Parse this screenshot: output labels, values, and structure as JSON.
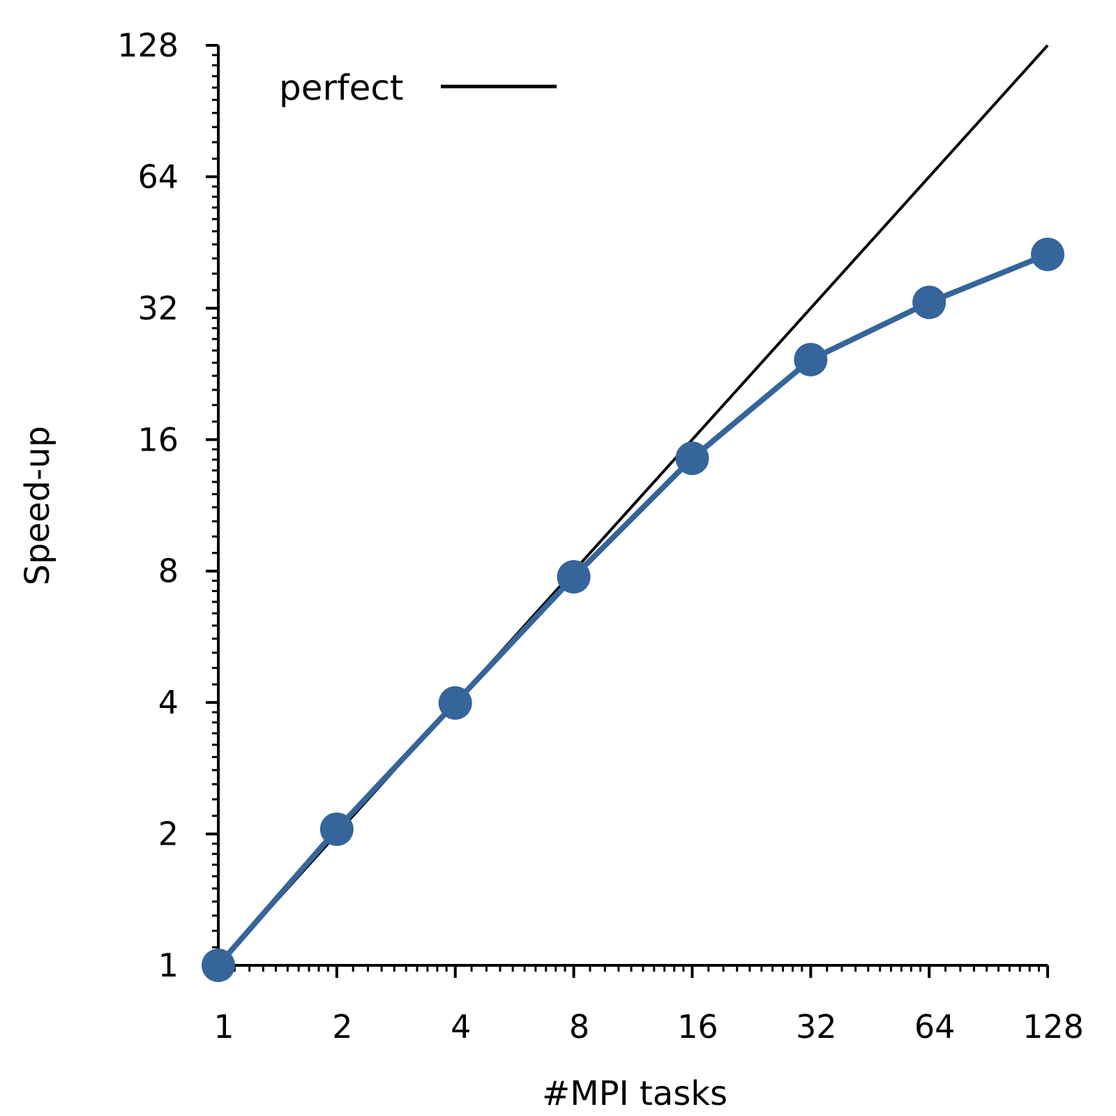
{
  "chart_data": {
    "type": "line",
    "title": "",
    "xlabel": "#MPI tasks",
    "ylabel": "Speed-up",
    "xscale": "log2",
    "yscale": "log2",
    "xlim": [
      1,
      128
    ],
    "ylim": [
      1,
      128
    ],
    "xticks": [
      "1",
      "2",
      "4",
      "8",
      "16",
      "32",
      "64",
      "128"
    ],
    "yticks": [
      "1",
      "2",
      "4",
      "8",
      "16",
      "32",
      "64",
      "128"
    ],
    "grid": false,
    "legend": {
      "placement": "top-left",
      "entries": [
        "perfect"
      ]
    },
    "series": [
      {
        "name": "perfect",
        "color": "#000000",
        "marker": "none",
        "x": [
          1,
          128
        ],
        "y": [
          1,
          128
        ]
      },
      {
        "color": "#35659a",
        "marker": "circle",
        "x": [
          1,
          2,
          4,
          8,
          16,
          32,
          64,
          128
        ],
        "y": [
          1.0,
          2.05,
          3.99,
          7.76,
          14.5,
          24.4,
          33.0,
          42.5
        ]
      }
    ]
  }
}
